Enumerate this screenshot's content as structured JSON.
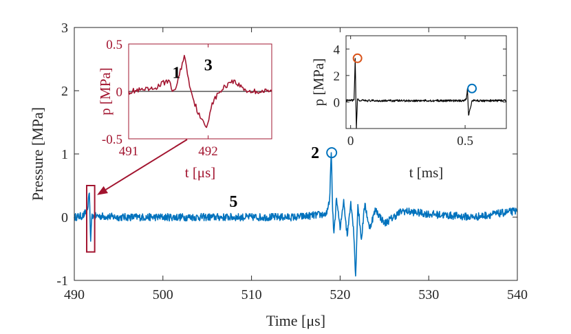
{
  "chart_data": [
    {
      "id": "main",
      "type": "line",
      "title": "",
      "xlabel": "Time [μs]",
      "ylabel": "Pressure [MPa]",
      "xlim": [
        490,
        540
      ],
      "ylim": [
        -1,
        3
      ],
      "xticks": [
        490,
        500,
        510,
        520,
        530,
        540
      ],
      "xtick_labels": [
        "490",
        "500",
        "510",
        "520",
        "530",
        "540"
      ],
      "yticks": [
        -1,
        0,
        1,
        2,
        3
      ],
      "ytick_labels": [
        "-1",
        "0",
        "1",
        "2",
        "3"
      ],
      "line_color": "#0072BD",
      "series": [
        {
          "name": "pressure",
          "noise_amplitude": 0.06,
          "x": [
            490,
            491.0,
            491.5,
            491.7,
            491.85,
            492.0,
            492.2,
            492.5,
            495,
            500,
            505,
            510,
            515,
            518.5,
            518.8,
            519.0,
            519.15,
            519.3,
            519.6,
            520.0,
            520.4,
            520.8,
            521.2,
            521.5,
            521.75,
            522.0,
            522.4,
            522.8,
            523.3,
            524,
            525,
            527,
            530,
            535,
            540
          ],
          "y": [
            0.0,
            0.02,
            0.12,
            0.38,
            -0.38,
            0.05,
            0.0,
            0.02,
            0.0,
            0.0,
            0.0,
            0.0,
            0.0,
            0.05,
            0.25,
            1.02,
            0.1,
            -0.25,
            0.3,
            -0.2,
            0.28,
            -0.3,
            0.25,
            -0.15,
            -0.93,
            0.2,
            -0.35,
            0.22,
            -0.18,
            0.12,
            -0.1,
            0.1,
            0.05,
            0.0,
            0.1
          ]
        }
      ],
      "marker": {
        "x": 519.05,
        "y": 1.02,
        "color": "#0072BD",
        "label": "2"
      },
      "annotations": [
        {
          "text": "5",
          "x": 507.5,
          "y": 0.25
        }
      ],
      "highlight": {
        "x0": 491.4,
        "x1": 492.3,
        "y0": -0.55,
        "y1": 0.5,
        "color": "#A2142F"
      }
    },
    {
      "id": "inset_left",
      "type": "line",
      "xlabel": "t [μs]",
      "ylabel": "p [MPa]",
      "xlim": [
        491,
        492.8
      ],
      "ylim": [
        -0.5,
        0.5
      ],
      "xticks": [
        491,
        492
      ],
      "xtick_labels": [
        "491",
        "492"
      ],
      "yticks": [
        -0.5,
        0,
        0.5
      ],
      "ytick_labels": [
        "-0.5",
        "0",
        "0.5"
      ],
      "color": "#A2142F",
      "series": [
        {
          "name": "zoom",
          "noise_amplitude": 0.03,
          "x": [
            491.0,
            491.3,
            491.5,
            491.55,
            491.6,
            491.7,
            491.78,
            491.82,
            491.9,
            491.98,
            492.05,
            492.15,
            492.3,
            492.5,
            492.8
          ],
          "y": [
            0.0,
            0.02,
            0.12,
            0.0,
            0.05,
            0.38,
            0.02,
            -0.1,
            -0.28,
            -0.38,
            -0.12,
            0.0,
            0.12,
            0.0,
            0.0
          ]
        }
      ],
      "annotations": [
        {
          "text": "1",
          "x": 491.55,
          "y": 0.2
        },
        {
          "text": "3",
          "x": 491.95,
          "y": 0.28
        }
      ]
    },
    {
      "id": "inset_right",
      "type": "line",
      "xlabel": "t [ms]",
      "ylabel": "p [MPa]",
      "xlim": [
        -0.02,
        0.68
      ],
      "ylim": [
        -2,
        5
      ],
      "xticks": [
        0,
        0.5
      ],
      "xtick_labels": [
        "0",
        "0.5"
      ],
      "yticks": [
        0,
        2,
        4
      ],
      "ytick_labels": [
        "0",
        "2",
        "4"
      ],
      "color": "#000000",
      "series": [
        {
          "name": "long",
          "noise_amplitude": 0.08,
          "x": [
            -0.02,
            0.0,
            0.015,
            0.02,
            0.025,
            0.03,
            0.04,
            0.2,
            0.49,
            0.505,
            0.51,
            0.515,
            0.53,
            0.68
          ],
          "y": [
            0.1,
            0.1,
            0.15,
            3.3,
            -2.0,
            0.2,
            0.1,
            0.1,
            0.1,
            0.2,
            1.0,
            -1.0,
            0.1,
            0.1
          ]
        }
      ],
      "markers": [
        {
          "x": 0.0,
          "y": 3.3,
          "color": "#D95319"
        },
        {
          "x": 0.5,
          "y": 1.02,
          "color": "#0072BD"
        }
      ]
    }
  ]
}
